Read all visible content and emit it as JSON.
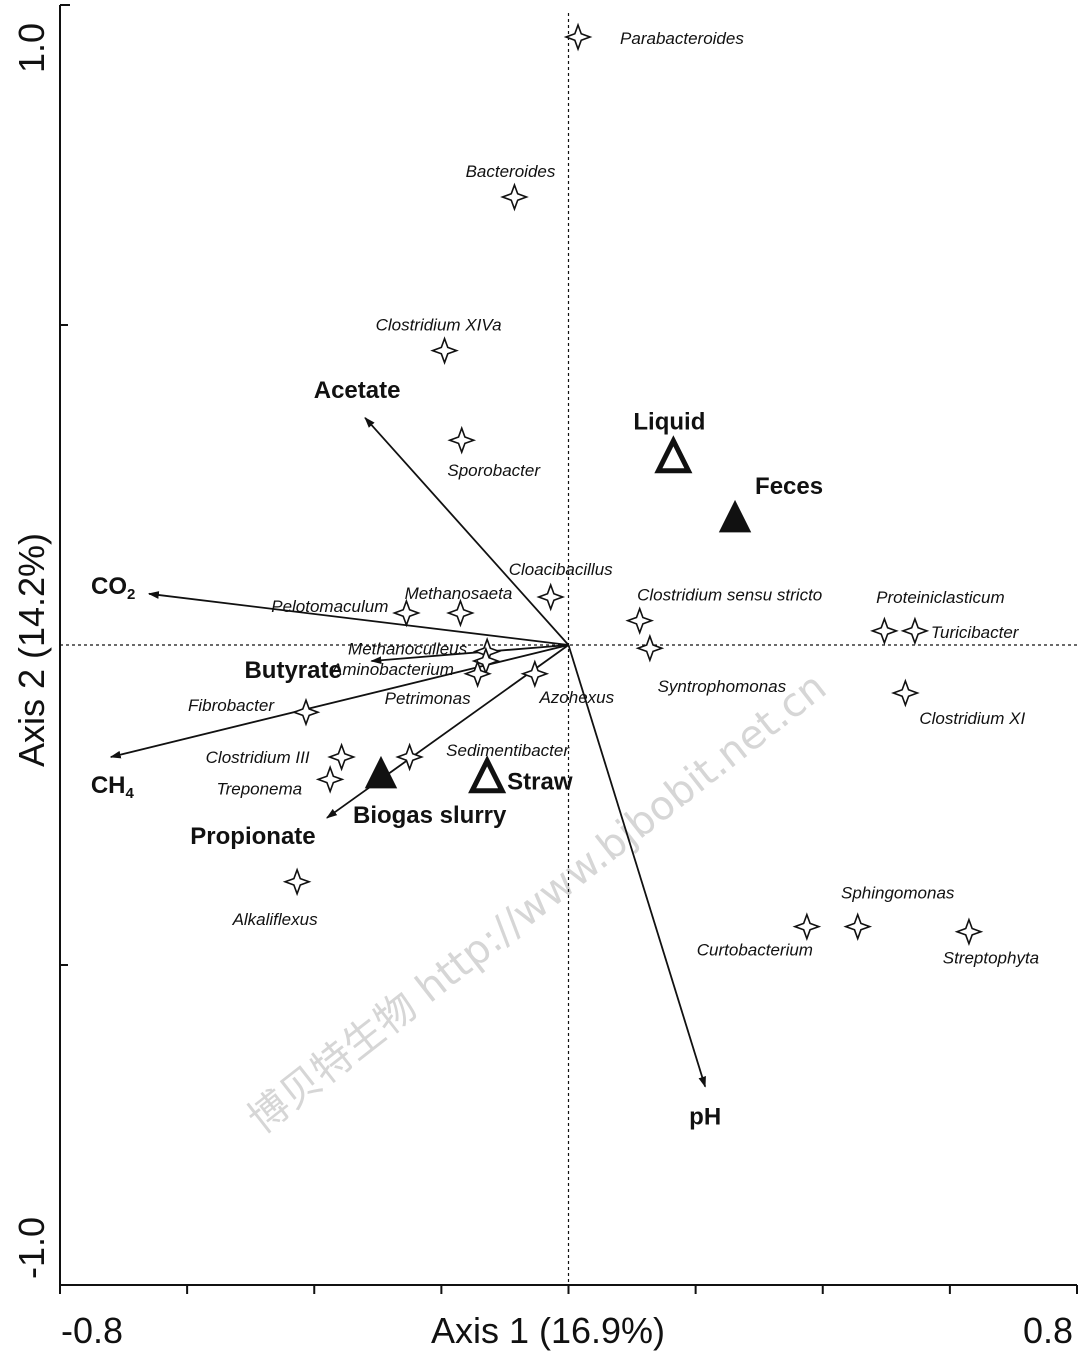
{
  "chart_data": {
    "type": "scatter",
    "subtype": "ordination-biplot",
    "xlabel": "Axis 1 (16.9%)",
    "ylabel": "Axis 2 (14.2%)",
    "xlim": [
      -0.8,
      0.8
    ],
    "ylim": [
      -1.0,
      1.0
    ],
    "x_tick_labels": [
      "-0.8",
      "0.8"
    ],
    "y_tick_labels": [
      "1.0",
      "-1.0"
    ],
    "x_minor_ticks": [
      -0.6,
      -0.4,
      -0.2,
      0.2,
      0.4,
      0.6
    ],
    "y_minor_ticks": [
      0.5,
      -0.5
    ],
    "grid": false,
    "origin_lines": "dashed",
    "watermark": "博贝特生物 http://www.bjbobit.net.cn",
    "species": [
      {
        "name": "Parabacteroides",
        "x": 0.015,
        "y": 0.95,
        "label_dx": 42,
        "label_dy": 7,
        "anchor": "start"
      },
      {
        "name": "Bacteroides",
        "x": -0.085,
        "y": 0.7,
        "label_dx": -4,
        "label_dy": -20,
        "anchor": "middle"
      },
      {
        "name": "Clostridium XIVa",
        "x": -0.195,
        "y": 0.46,
        "label_dx": -6,
        "label_dy": -20,
        "anchor": "middle"
      },
      {
        "name": "Sporobacter",
        "x": -0.168,
        "y": 0.32,
        "label_dx": 32,
        "label_dy": 36,
        "anchor": "middle"
      },
      {
        "name": "Cloacibacillus",
        "x": -0.028,
        "y": 0.075,
        "label_dx": 10,
        "label_dy": -22,
        "anchor": "middle"
      },
      {
        "name": "Methanosaeta",
        "x": -0.17,
        "y": 0.05,
        "label_dx": -2,
        "label_dy": -14,
        "anchor": "middle"
      },
      {
        "name": "Pelotomaculum",
        "x": -0.255,
        "y": 0.05,
        "label_dx": -18,
        "label_dy": -1,
        "anchor": "end"
      },
      {
        "name": "Methanoculleus",
        "x": -0.128,
        "y": -0.01,
        "label_dx": -20,
        "label_dy": 3,
        "anchor": "end"
      },
      {
        "name": "Aminobacterium",
        "x": -0.13,
        "y": -0.025,
        "label_dx": -32,
        "label_dy": 14,
        "anchor": "end"
      },
      {
        "name": "Petrimonas",
        "x": -0.143,
        "y": -0.045,
        "label_dx": -50,
        "label_dy": 30,
        "anchor": "middle"
      },
      {
        "name": "Azohexus",
        "x": -0.053,
        "y": -0.045,
        "label_dx": 42,
        "label_dy": 29,
        "anchor": "middle"
      },
      {
        "name": "Clostridium sensu stricto",
        "x": 0.112,
        "y": 0.038,
        "label_dx": 90,
        "label_dy": -20,
        "anchor": "middle"
      },
      {
        "name": "Syntrophomonas",
        "x": 0.128,
        "y": -0.005,
        "label_dx": 72,
        "label_dy": 44,
        "anchor": "middle"
      },
      {
        "name": "Proteiniclasticum",
        "x": 0.497,
        "y": 0.022,
        "label_dx": 56,
        "label_dy": -28,
        "anchor": "middle"
      },
      {
        "name": "Turicibacter",
        "x": 0.545,
        "y": 0.022,
        "label_dx": 16,
        "label_dy": 7,
        "anchor": "start"
      },
      {
        "name": "Clostridium XI",
        "x": 0.53,
        "y": -0.075,
        "label_dx": 14,
        "label_dy": 31,
        "anchor": "start"
      },
      {
        "name": "Fibrobacter",
        "x": -0.413,
        "y": -0.105,
        "label_dx": -32,
        "label_dy": -1,
        "anchor": "end"
      },
      {
        "name": "Clostridium III",
        "x": -0.357,
        "y": -0.175,
        "label_dx": -32,
        "label_dy": 6,
        "anchor": "end"
      },
      {
        "name": "Sedimentibacter",
        "x": -0.25,
        "y": -0.175,
        "label_dx": 98,
        "label_dy": -1,
        "anchor": "middle"
      },
      {
        "name": "Treponema",
        "x": -0.375,
        "y": -0.21,
        "label_dx": -28,
        "label_dy": 15,
        "anchor": "end"
      },
      {
        "name": "Alkaliflexus",
        "x": -0.427,
        "y": -0.37,
        "label_dx": -22,
        "label_dy": 43,
        "anchor": "middle"
      },
      {
        "name": "Sphingomonas",
        "x": 0.455,
        "y": -0.44,
        "label_dx": 40,
        "label_dy": -28,
        "anchor": "middle"
      },
      {
        "name": "Curtobacterium",
        "x": 0.375,
        "y": -0.44,
        "label_dx": -52,
        "label_dy": 29,
        "anchor": "middle"
      },
      {
        "name": "Streptophyta",
        "x": 0.63,
        "y": -0.448,
        "label_dx": 22,
        "label_dy": 32,
        "anchor": "middle"
      }
    ],
    "env_vectors": [
      {
        "name": "Acetate",
        "x": -0.32,
        "y": 0.355,
        "label_dx": -8,
        "label_dy": -20,
        "anchor": "middle"
      },
      {
        "name": "CO",
        "sub": "2",
        "x": -0.66,
        "y": 0.08,
        "label_dx": -58,
        "label_dy": 0,
        "anchor": "start"
      },
      {
        "name": "Butyrate",
        "x": -0.31,
        "y": -0.025,
        "label_dx": -127,
        "label_dy": 17,
        "anchor": "start"
      },
      {
        "name": "CH",
        "sub": "4",
        "x": -0.72,
        "y": -0.175,
        "label_dx": -20,
        "label_dy": 36,
        "anchor": "start"
      },
      {
        "name": "Propionate",
        "x": -0.38,
        "y": -0.27,
        "label_dx": -74,
        "label_dy": 26,
        "anchor": "middle"
      },
      {
        "name": "pH",
        "x": 0.215,
        "y": -0.69,
        "label_dx": 0,
        "label_dy": 38,
        "anchor": "middle"
      }
    ],
    "samples": [
      {
        "name": "Liquid",
        "marker": "open-triangle",
        "x": 0.165,
        "y": 0.29,
        "label_dx": -4,
        "label_dy": -30,
        "anchor": "middle"
      },
      {
        "name": "Feces",
        "marker": "filled-triangle",
        "x": 0.262,
        "y": 0.195,
        "label_dx": 20,
        "label_dy": -26,
        "anchor": "start"
      },
      {
        "name": "Biogas slurry",
        "marker": "filled-triangle",
        "x": -0.295,
        "y": -0.205,
        "label_dx": -28,
        "label_dy": 47,
        "anchor": "start"
      },
      {
        "name": "Straw",
        "marker": "open-triangle",
        "x": -0.128,
        "y": -0.21,
        "label_dx": 20,
        "label_dy": 10,
        "anchor": "start"
      }
    ]
  }
}
